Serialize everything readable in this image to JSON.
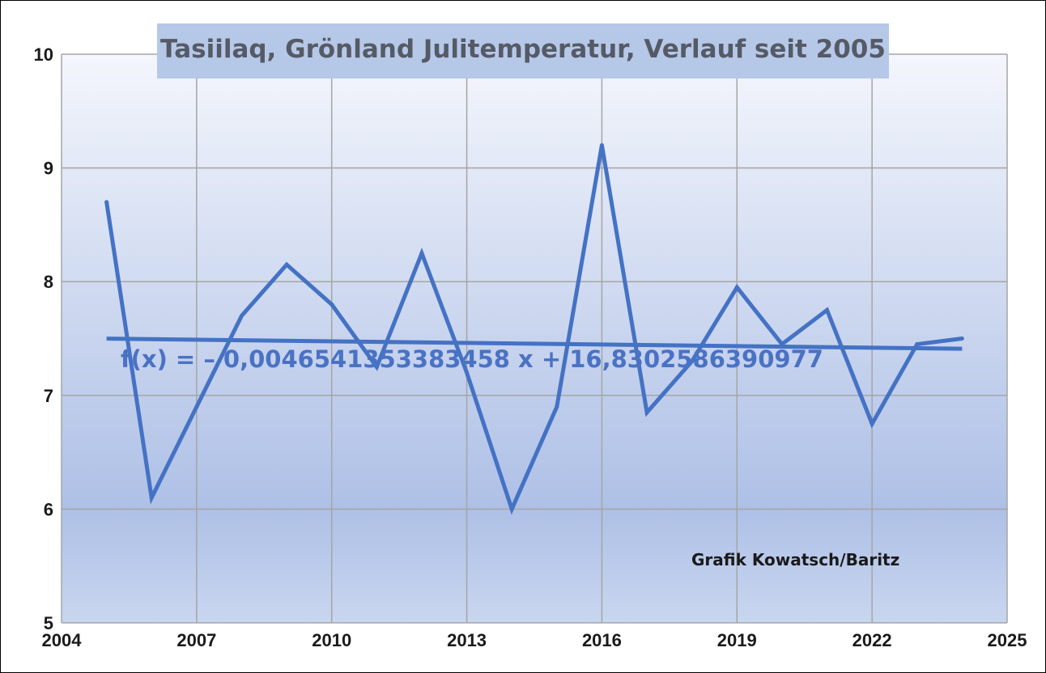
{
  "chart_data": {
    "type": "line",
    "title": "Tasiilaq, Grönland Julitemperatur, Verlauf seit 2005",
    "x": [
      2005,
      2006,
      2007,
      2008,
      2009,
      2010,
      2011,
      2012,
      2013,
      2014,
      2015,
      2016,
      2017,
      2018,
      2019,
      2020,
      2021,
      2022,
      2023,
      2024
    ],
    "series": [
      {
        "values": [
          8.7,
          6.1,
          6.9,
          7.7,
          8.15,
          7.8,
          7.25,
          8.25,
          7.2,
          6.0,
          6.9,
          9.2,
          6.85,
          7.3,
          7.95,
          7.45,
          7.75,
          6.75,
          7.45,
          7.5
        ],
        "color": "#4472c4"
      }
    ],
    "trendline": {
      "equation": "f(x) = – 0,0046541353383458 x + 16,8302586390977",
      "slope": -0.0046541353383458,
      "intercept": 16.8302586390977,
      "color": "#4472c4"
    },
    "xlim": [
      2004,
      2025
    ],
    "ylim": [
      5,
      10
    ],
    "xticks": [
      "2004",
      "2007",
      "2010",
      "2013",
      "2016",
      "2019",
      "2022",
      "2025"
    ],
    "yticks": [
      "5",
      "6",
      "7",
      "8",
      "9",
      "10"
    ],
    "annotation": "Grafik Kowatsch/Baritz",
    "grid": true,
    "legend": "none"
  },
  "colors": {
    "line": "#4472c4",
    "title_box": "#b6c8e8",
    "plot_gradient_top": "#f4f6fc",
    "plot_gradient_mid": "#aec0e6",
    "plot_gradient_bottom": "#c9d6ef",
    "grid": "#a5a5a5"
  }
}
